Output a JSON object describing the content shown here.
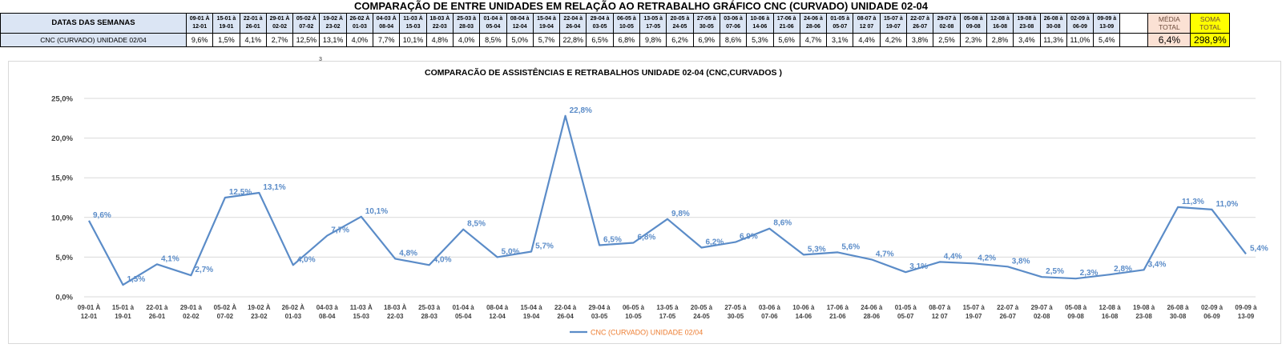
{
  "banner_title": "COMPARAÇÃO DE ENTRE UNIDADES EM RELAÇÃO AO RETRABALHO GRÁFICO CNC (CURVADO) UNIDADE 02-04",
  "table": {
    "header_label": "DATAS DAS SEMANAS",
    "row_label": "CNC (CURVADO) UNIDADE 02/04",
    "weeks": [
      {
        "top": "09-01 À",
        "bottom": "12-01"
      },
      {
        "top": "15-01 à",
        "bottom": "19-01"
      },
      {
        "top": "22-01 à",
        "bottom": "26-01"
      },
      {
        "top": "29-01 À",
        "bottom": "02-02"
      },
      {
        "top": "05-02 À",
        "bottom": "07-02"
      },
      {
        "top": "19-02 À",
        "bottom": "23-02"
      },
      {
        "top": "26-02 À",
        "bottom": "01-03"
      },
      {
        "top": "04-03 À",
        "bottom": "08-04"
      },
      {
        "top": "11-03 À",
        "bottom": "15-03"
      },
      {
        "top": "18-03 À",
        "bottom": "22-03"
      },
      {
        "top": "25-03 à",
        "bottom": "28-03"
      },
      {
        "top": "01-04 à",
        "bottom": "05-04"
      },
      {
        "top": "08-04 à",
        "bottom": "12-04"
      },
      {
        "top": "15-04 à",
        "bottom": "19-04"
      },
      {
        "top": "22-04 à",
        "bottom": "26-04"
      },
      {
        "top": "29-04 à",
        "bottom": "03-05"
      },
      {
        "top": "06-05 à",
        "bottom": "10-05"
      },
      {
        "top": "13-05 à",
        "bottom": "17-05"
      },
      {
        "top": "20-05 à",
        "bottom": "24-05"
      },
      {
        "top": "27-05 à",
        "bottom": "30-05"
      },
      {
        "top": "03-06 à",
        "bottom": "07-06"
      },
      {
        "top": "10-06 à",
        "bottom": "14-06"
      },
      {
        "top": "17-06 à",
        "bottom": "21-06"
      },
      {
        "top": "24-06 à",
        "bottom": "28-06"
      },
      {
        "top": "01-05 à",
        "bottom": "05-07"
      },
      {
        "top": "08-07 à",
        "bottom": "12 07"
      },
      {
        "top": "15-07 à",
        "bottom": "19-07"
      },
      {
        "top": "22-07 à",
        "bottom": "26-07"
      },
      {
        "top": "29-07 à",
        "bottom": "02-08"
      },
      {
        "top": "05-08 à",
        "bottom": "09-08"
      },
      {
        "top": "12-08 à",
        "bottom": "16-08"
      },
      {
        "top": "19-08 à",
        "bottom": "23-08"
      },
      {
        "top": "26-08 à",
        "bottom": "30-08"
      },
      {
        "top": "02-09 à",
        "bottom": "06-09"
      },
      {
        "top": "09-09 à",
        "bottom": "13-09"
      }
    ],
    "values": [
      "9,6%",
      "1,5%",
      "4,1%",
      "2,7%",
      "12,5%",
      "13,1%",
      "4,0%",
      "7,7%",
      "10,1%",
      "4,8%",
      "4,0%",
      "8,5%",
      "5,0%",
      "5,7%",
      "22,8%",
      "6,5%",
      "6,8%",
      "9,8%",
      "6,2%",
      "6,9%",
      "8,6%",
      "5,3%",
      "5,6%",
      "4,7%",
      "3,1%",
      "4,4%",
      "4,2%",
      "3,8%",
      "2,5%",
      "2,3%",
      "2,8%",
      "3,4%",
      "11,3%",
      "11,0%",
      "5,4%"
    ],
    "media_label_1": "MÉDIA",
    "media_label_2": "TOTAL",
    "media_value": "6,4%",
    "soma_label_1": "SOMA",
    "soma_label_2": "TOTAL",
    "soma_value": "298,9%"
  },
  "stray_mark": "3",
  "colors": {
    "line": "#5b8cc8",
    "label": "#5b8cc8",
    "legend_text": "#ed7d31",
    "header_fill": "#dbe5f4",
    "media_fill": "#fbe1d4",
    "soma_fill": "#ffff00"
  },
  "chart_data": {
    "type": "line",
    "title": "COMPARACÃO DE ASSISTÊNCIAS E RETRABALHOS UNIDADE 02-04  (CNC,CURVADOS )",
    "ylim": [
      0,
      25
    ],
    "yticks": [
      0,
      5,
      10,
      15,
      20,
      25
    ],
    "ytick_labels": [
      "0,0%",
      "5,0%",
      "10,0%",
      "15,0%",
      "20,0%",
      "25,0%"
    ],
    "grid": true,
    "legend_position": "bottom",
    "categories": [
      [
        "09-01 À",
        "12-01"
      ],
      [
        "15-01 à",
        "19-01"
      ],
      [
        "22-01 à",
        "26-01"
      ],
      [
        "29-01 à",
        "02-02"
      ],
      [
        "05-02 À",
        "07-02"
      ],
      [
        "19-02 À",
        "23-02"
      ],
      [
        "26-02 À",
        "01-03"
      ],
      [
        "04-03 à",
        "08-04"
      ],
      [
        "11-03 À",
        "15-03"
      ],
      [
        "18-03 À",
        "22-03"
      ],
      [
        "25-03 à",
        "28-03"
      ],
      [
        "01-04 à",
        "05-04"
      ],
      [
        "08-04 à",
        "12-04"
      ],
      [
        "15-04 à",
        "19-04"
      ],
      [
        "22-04 à",
        "26-04"
      ],
      [
        "29-04 à",
        "03-05"
      ],
      [
        "06-05 à",
        "10-05"
      ],
      [
        "13-05 à",
        "17-05"
      ],
      [
        "20-05 à",
        "24-05"
      ],
      [
        "27-05 à",
        "30-05"
      ],
      [
        "03-06 à",
        "07-06"
      ],
      [
        "10-06 à",
        "14-06"
      ],
      [
        "17-06 à",
        "21-06"
      ],
      [
        "24-06 à",
        "28-06"
      ],
      [
        "01-05 à",
        "05-07"
      ],
      [
        "08-07 à",
        "12 07"
      ],
      [
        "15-07 à",
        "19-07"
      ],
      [
        "22-07 à",
        "26-07"
      ],
      [
        "29-07 à",
        "02-08"
      ],
      [
        "05-08 à",
        "09-08"
      ],
      [
        "12-08 à",
        "16-08"
      ],
      [
        "19-08 à",
        "23-08"
      ],
      [
        "26-08 à",
        "30-08"
      ],
      [
        "02-09 à",
        "06-09"
      ],
      [
        "09-09 à",
        "13-09"
      ]
    ],
    "series": [
      {
        "name": "CNC (CURVADO) UNIDADE 02/04",
        "values": [
          9.6,
          1.5,
          4.1,
          2.7,
          12.5,
          13.1,
          4.0,
          7.7,
          10.1,
          4.8,
          4.0,
          8.5,
          5.0,
          5.7,
          22.8,
          6.5,
          6.8,
          9.8,
          6.2,
          6.9,
          8.6,
          5.3,
          5.6,
          4.7,
          3.1,
          4.4,
          4.2,
          3.8,
          2.5,
          2.3,
          2.8,
          3.4,
          11.3,
          11.0,
          5.4
        ],
        "labels": [
          "9,6%",
          "1,5%",
          "4,1%",
          "2,7%",
          "12,5%",
          "13,1%",
          "4,0%",
          "7,7%",
          "10,1%",
          "4,8%",
          "4,0%",
          "8,5%",
          "5,0%",
          "5,7%",
          "22,8%",
          "6,5%",
          "6,8%",
          "9,8%",
          "6,2%",
          "6,9%",
          "8,6%",
          "5,3%",
          "5,6%",
          "4,7%",
          "3,1%",
          "4,4%",
          "4,2%",
          "3,8%",
          "2,5%",
          "2,3%",
          "2,8%",
          "3,4%",
          "11,3%",
          "11,0%",
          "5,4%"
        ]
      }
    ]
  }
}
